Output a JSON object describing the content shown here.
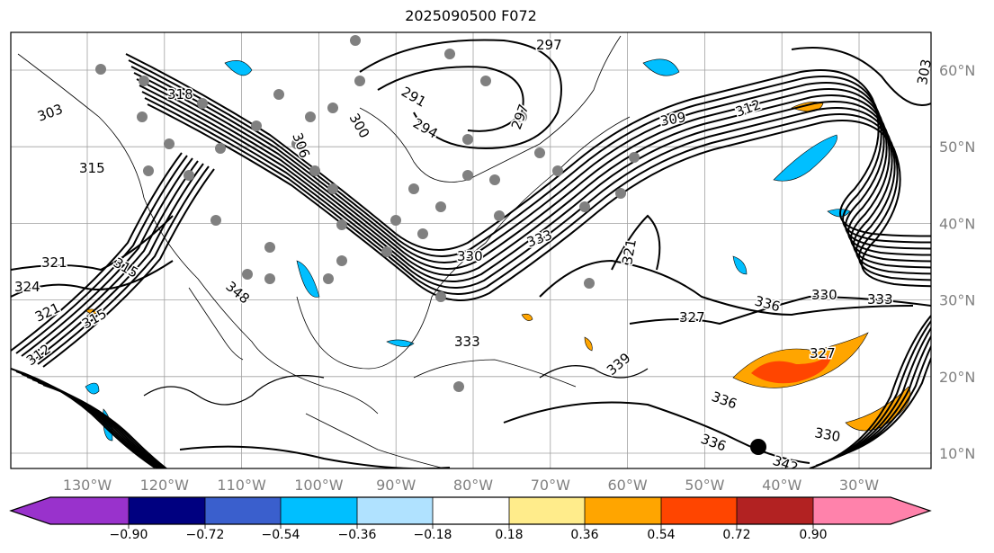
{
  "title": "2025090500 F072",
  "map": {
    "longitude_labels": [
      "130°W",
      "120°W",
      "110°W",
      "100°W",
      "90°W",
      "80°W",
      "70°W",
      "60°W",
      "50°W",
      "40°W",
      "30°W"
    ],
    "latitude_labels": [
      "60°N",
      "50°N",
      "40°N",
      "30°N",
      "20°N",
      "10°N"
    ],
    "contour_labels": [
      "297",
      "297",
      "303",
      "291",
      "294",
      "300",
      "306",
      "309",
      "312",
      "318",
      "303",
      "315",
      "321",
      "324",
      "321",
      "315",
      "312",
      "336",
      "333",
      "336",
      "330",
      "333",
      "321",
      "327",
      "327",
      "330",
      "336",
      "342",
      "339",
      "333",
      "330",
      "348",
      "315"
    ]
  },
  "colorbar": {
    "colors": [
      "#9932CC",
      "#000080",
      "#3A5FCD",
      "#00BFFF",
      "#B0E2FF",
      "#FFFFFF",
      "#FFEC8B",
      "#FFA500",
      "#FF4500",
      "#B22222",
      "#FF82AB"
    ],
    "tick_labels": [
      "−0.90",
      "−0.72",
      "−0.54",
      "−0.36",
      "−0.18",
      "0.18",
      "0.36",
      "0.54",
      "0.72",
      "0.90"
    ]
  }
}
